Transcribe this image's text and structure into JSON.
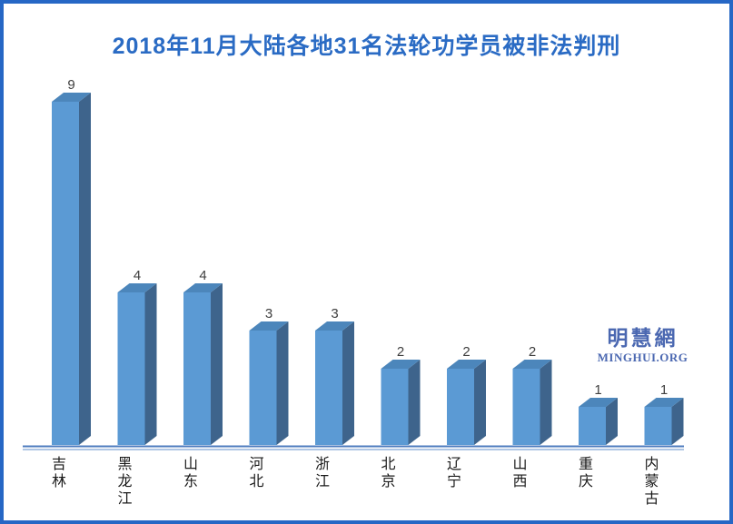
{
  "chart_data": {
    "type": "bar",
    "title": "2018年11月大陆各地31名法轮功学员被非法判刑",
    "categories": [
      "吉林",
      "黑龙江",
      "山东",
      "河北",
      "浙江",
      "北京",
      "辽宁",
      "山西",
      "重庆",
      "内蒙古"
    ],
    "values": [
      9,
      4,
      4,
      3,
      3,
      2,
      2,
      2,
      1,
      1
    ],
    "total_stated_in_title": 31,
    "xlabel": "",
    "ylabel": "",
    "ylim": [
      0,
      9
    ],
    "grid": false,
    "legend": false,
    "bar_value_labels_shown": true,
    "style": "3d-column",
    "colors": {
      "bar_front": "#5b9ad4",
      "bar_top": "#4c86bb",
      "bar_side": "#3e648c",
      "axis_line": "#4f7dbf",
      "axis_line_secondary": "#7fa5d4",
      "title_text": "#2a6bc4",
      "frame_border": "#2667c5",
      "value_label_text": "#3f3f3f",
      "category_label_text": "#1a1a1a",
      "watermark_text": "#4b68b1"
    }
  },
  "watermark": {
    "chinese": "明慧網",
    "latin": "MINGHUI.ORG"
  }
}
